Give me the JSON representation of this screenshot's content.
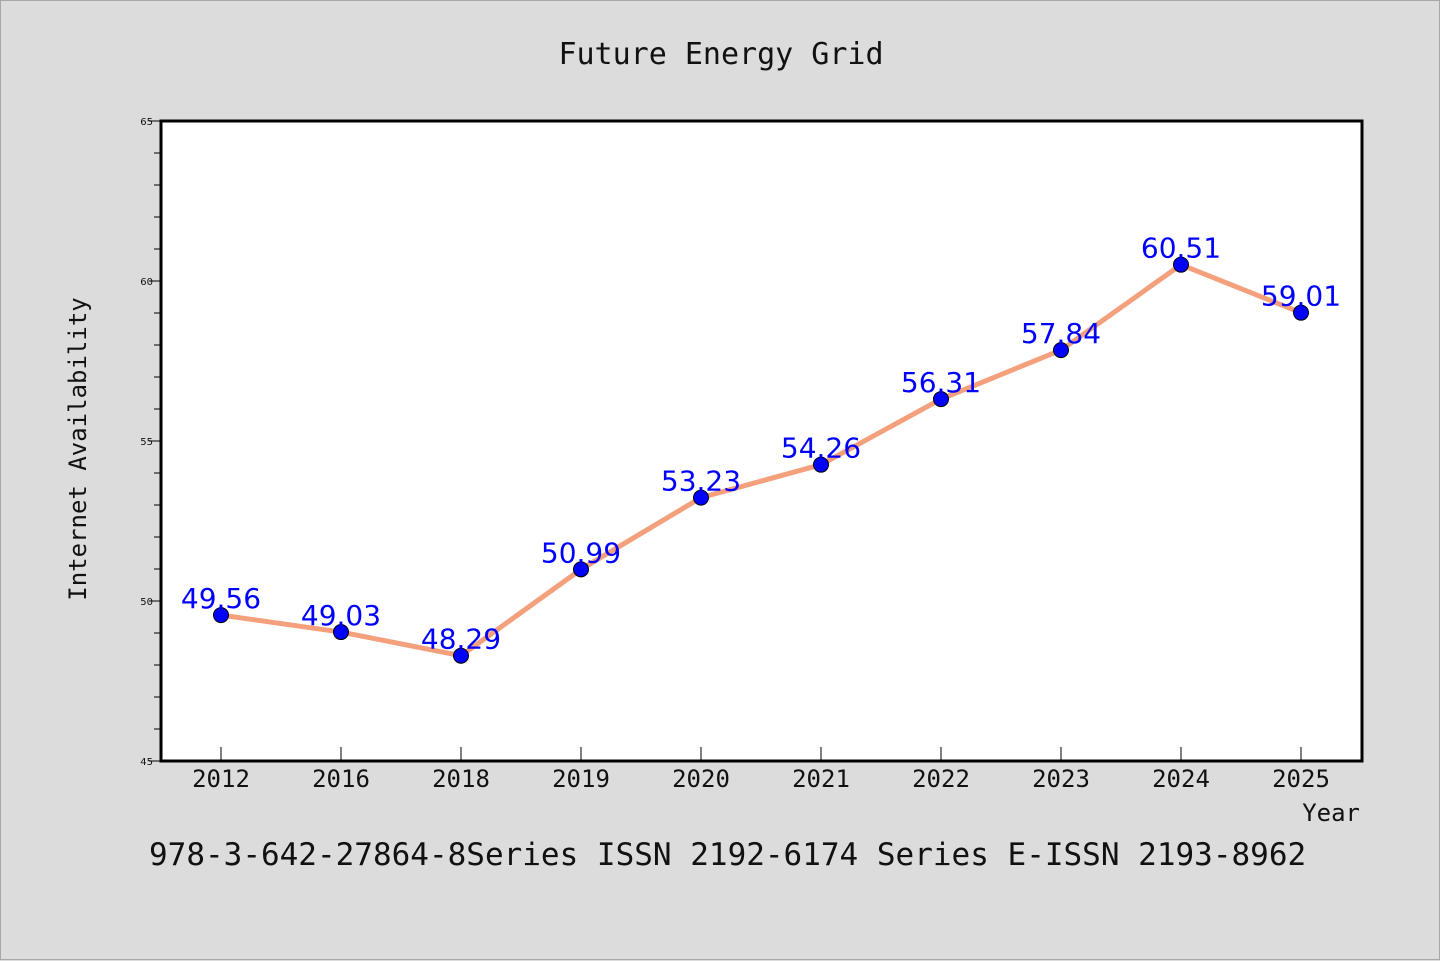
{
  "chart_data": {
    "type": "line",
    "title": "Future Energy Grid",
    "xlabel": "Year",
    "ylabel": "Internet Availability",
    "categories": [
      "2012",
      "2016",
      "2018",
      "2019",
      "2020",
      "2021",
      "2022",
      "2023",
      "2024",
      "2025"
    ],
    "series": [
      {
        "values": [
          49.56,
          49.03,
          48.29,
          50.99,
          53.23,
          54.26,
          56.31,
          57.84,
          60.51,
          59.01
        ],
        "labels": [
          "49.56",
          "49.03",
          "48.29",
          "50.99",
          "53.23",
          "54.26",
          "56.31",
          "57.84",
          "60.51",
          "59.01"
        ],
        "line_color": "#f4a07c",
        "marker_color": "#0000ff"
      }
    ],
    "ylim": [
      45,
      65
    ],
    "yticks": [
      "45",
      "50",
      "55",
      "60",
      "65"
    ],
    "grid": false,
    "legend": "none"
  },
  "footer": {
    "text": "978-3-642-27864-8Series ISSN 2192-6174 Series E-ISSN 2193-8962"
  }
}
